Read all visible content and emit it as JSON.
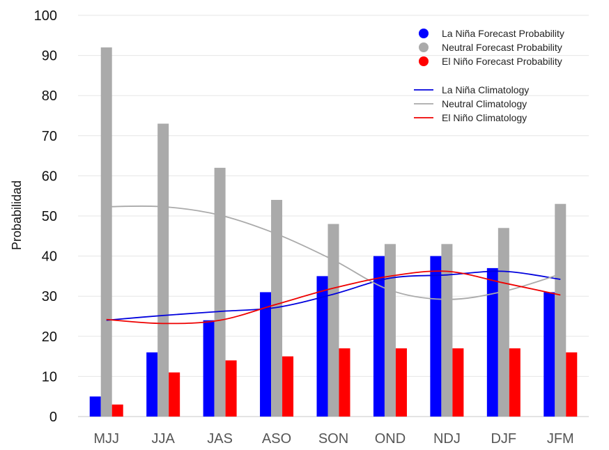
{
  "chart_data": {
    "type": "bar",
    "title": "",
    "xlabel": "",
    "ylabel": "Probabilidad",
    "ylim": [
      0,
      100
    ],
    "yticks": [
      0,
      10,
      20,
      30,
      40,
      50,
      60,
      70,
      80,
      90,
      100
    ],
    "grid": true,
    "legend_position": "top-right",
    "categories": [
      "MJJ",
      "JJA",
      "JAS",
      "ASO",
      "SON",
      "OND",
      "NDJ",
      "DJF",
      "JFM"
    ],
    "series": [
      {
        "name": "La Niña Forecast Probability",
        "type": "bar",
        "color": "#0000ff",
        "values": [
          5,
          16,
          24,
          31,
          35,
          40,
          40,
          37,
          31
        ]
      },
      {
        "name": "Neutral Forecast Probability",
        "type": "bar",
        "color": "#aaaaaa",
        "values": [
          92,
          73,
          62,
          54,
          48,
          43,
          43,
          47,
          53
        ]
      },
      {
        "name": "El Niño Forecast Probability",
        "type": "bar",
        "color": "#ff0000",
        "values": [
          3,
          11,
          14,
          15,
          17,
          17,
          17,
          17,
          16
        ]
      },
      {
        "name": "La Niña Climatology",
        "type": "line",
        "color": "#0000dd",
        "values": [
          24,
          25.2,
          26.2,
          27.2,
          30.5,
          34.5,
          35.3,
          36.2,
          34.2
        ]
      },
      {
        "name": "Neutral Climatology",
        "type": "line",
        "color": "#aaaaaa",
        "values": [
          52.3,
          52.3,
          50.2,
          45.5,
          39,
          31.5,
          29.2,
          31.2,
          35.5
        ]
      },
      {
        "name": "El Niño Climatology",
        "type": "line",
        "color": "#ee0000",
        "values": [
          24.2,
          23.2,
          24,
          28,
          32,
          35,
          36.2,
          33.3,
          30.3
        ]
      }
    ]
  }
}
